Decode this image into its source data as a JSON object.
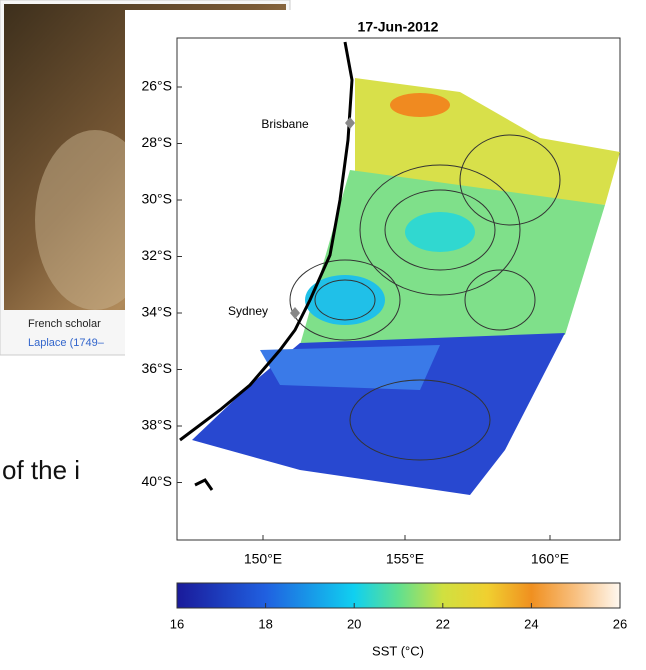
{
  "background": {
    "caption": [
      "French scholar",
      "Laplace (1749–"
    ],
    "text": "of the i"
  },
  "figure": {
    "title": "17-Jun-2012",
    "latitude_ticks": [
      "26°S",
      "28°S",
      "30°S",
      "32°S",
      "34°S",
      "36°S",
      "38°S",
      "40°S"
    ],
    "longitude_ticks": [
      "150°E",
      "155°E",
      "160°E"
    ],
    "places": [
      "Brisbane",
      "Sydney"
    ],
    "colorbar": {
      "ticks": [
        16,
        18,
        20,
        22,
        24,
        26
      ],
      "label": "SST (°C)"
    }
  }
}
